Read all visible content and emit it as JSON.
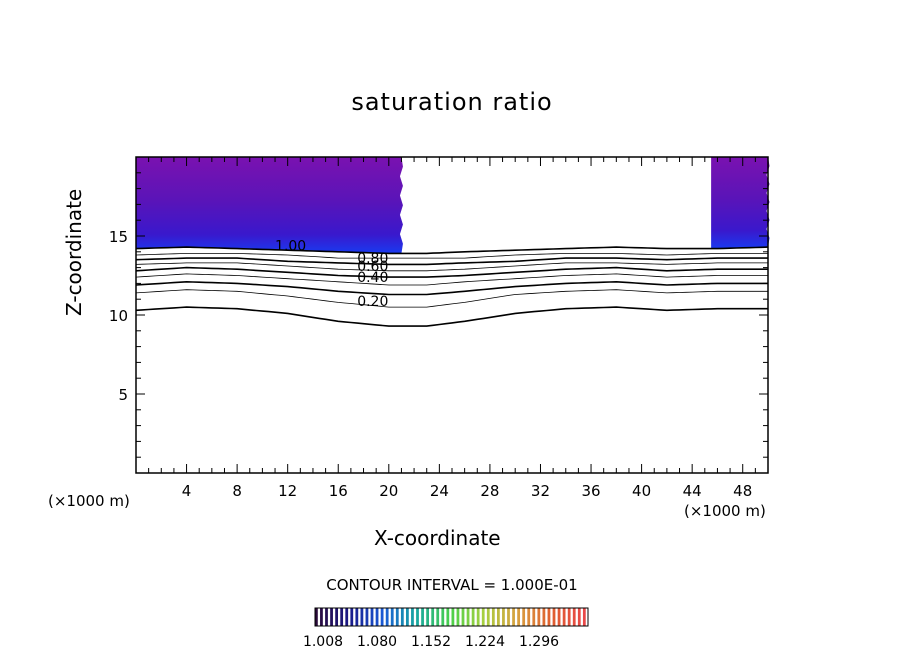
{
  "chart_data": {
    "type": "contour",
    "title": "saturation ratio",
    "xlabel": "X-coordinate",
    "ylabel": "Z-coordinate",
    "x_unit_label": "(×1000 m)",
    "xlim": [
      0,
      50
    ],
    "ylim": [
      0,
      20
    ],
    "x_ticks": [
      4,
      8,
      12,
      16,
      20,
      24,
      28,
      32,
      36,
      40,
      44,
      48
    ],
    "y_ticks": [
      5,
      10,
      15
    ],
    "contour_interval_text": "CONTOUR INTERVAL = 1.000E-01",
    "contour_labels": [
      {
        "text": "1.00",
        "x": 11,
        "z": 14.4
      },
      {
        "text": "0.80",
        "x": 17.5,
        "z": 13.6
      },
      {
        "text": "0.60",
        "x": 17.5,
        "z": 13.1
      },
      {
        "text": "0.40",
        "x": 17.5,
        "z": 12.4
      },
      {
        "text": "0.20",
        "x": 17.5,
        "z": 10.9
      }
    ],
    "contours": [
      {
        "level": 0.2,
        "z": [
          10.3,
          10.5,
          10.4,
          10.1,
          9.6,
          9.3,
          9.3,
          9.6,
          10.1,
          10.4,
          10.5,
          10.3,
          10.4,
          10.4
        ]
      },
      {
        "level": 0.3,
        "z": [
          11.4,
          11.6,
          11.5,
          11.2,
          10.8,
          10.5,
          10.5,
          10.8,
          11.3,
          11.5,
          11.6,
          11.4,
          11.5,
          11.5
        ]
      },
      {
        "level": 0.4,
        "z": [
          11.9,
          12.1,
          12.0,
          11.8,
          11.5,
          11.3,
          11.3,
          11.5,
          11.8,
          12.0,
          12.1,
          11.9,
          12.0,
          12.0
        ]
      },
      {
        "level": 0.5,
        "z": [
          12.4,
          12.6,
          12.5,
          12.3,
          12.1,
          11.9,
          11.9,
          12.1,
          12.3,
          12.5,
          12.6,
          12.4,
          12.5,
          12.5
        ]
      },
      {
        "level": 0.6,
        "z": [
          12.8,
          13.0,
          12.9,
          12.7,
          12.5,
          12.4,
          12.4,
          12.5,
          12.7,
          12.9,
          13.0,
          12.8,
          12.9,
          12.9
        ]
      },
      {
        "level": 0.7,
        "z": [
          13.2,
          13.3,
          13.3,
          13.1,
          12.9,
          12.8,
          12.8,
          12.9,
          13.1,
          13.3,
          13.3,
          13.2,
          13.3,
          13.3
        ]
      },
      {
        "level": 0.8,
        "z": [
          13.5,
          13.6,
          13.6,
          13.4,
          13.3,
          13.2,
          13.2,
          13.3,
          13.4,
          13.6,
          13.6,
          13.5,
          13.6,
          13.6
        ]
      },
      {
        "level": 0.9,
        "z": [
          13.8,
          13.9,
          13.9,
          13.8,
          13.6,
          13.6,
          13.6,
          13.6,
          13.8,
          13.9,
          13.9,
          13.8,
          13.9,
          13.9
        ]
      },
      {
        "level": 1.0,
        "z": [
          14.2,
          14.3,
          14.2,
          14.1,
          14.0,
          13.9,
          13.9,
          14.0,
          14.1,
          14.2,
          14.3,
          14.2,
          14.2,
          14.3
        ]
      }
    ],
    "contour_x": [
      0,
      4,
      8,
      12,
      16,
      20,
      23,
      26,
      30,
      34,
      38,
      42,
      46,
      50
    ],
    "supersaturated_regions": [
      {
        "x_from": 0,
        "x_to": 21
      },
      {
        "x_from": 45.5,
        "x_to": 50
      }
    ],
    "colorbar": {
      "tick_labels": [
        "1.008",
        "1.080",
        "1.152",
        "1.224",
        "1.296"
      ],
      "colors": [
        "#2a0a3a",
        "#1a1a8a",
        "#1a5ad6",
        "#18a8a0",
        "#4ad04a",
        "#a8d040",
        "#d8a040",
        "#e06030",
        "#e84848"
      ]
    }
  }
}
